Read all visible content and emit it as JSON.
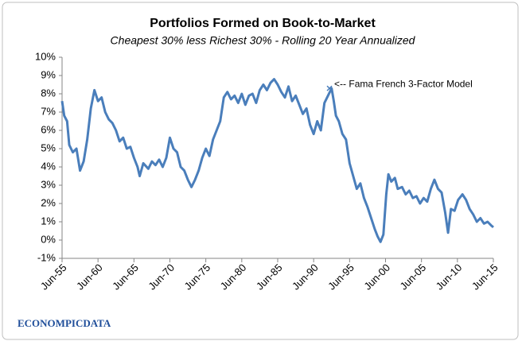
{
  "chart_data": {
    "type": "line",
    "title": "Portfolios Formed on Book-to-Market",
    "subtitle": "Cheapest 30% less Richest 30% - Rolling 20 Year Annualized",
    "xlim": [
      1955.5,
      2015.5
    ],
    "xticks": [
      {
        "value": 1955.5,
        "label": "Jun-55"
      },
      {
        "value": 1960.5,
        "label": "Jun-60"
      },
      {
        "value": 1965.5,
        "label": "Jun-65"
      },
      {
        "value": 1970.5,
        "label": "Jun-70"
      },
      {
        "value": 1975.5,
        "label": "Jun-75"
      },
      {
        "value": 1980.5,
        "label": "Jun-80"
      },
      {
        "value": 1985.5,
        "label": "Jun-85"
      },
      {
        "value": 1990.5,
        "label": "Jun-90"
      },
      {
        "value": 1995.5,
        "label": "Jun-95"
      },
      {
        "value": 2000.5,
        "label": "Jun-00"
      },
      {
        "value": 2005.5,
        "label": "Jun-05"
      },
      {
        "value": 2010.5,
        "label": "Jun-10"
      },
      {
        "value": 2015.5,
        "label": "Jun-15"
      }
    ],
    "ylim": [
      -1,
      10
    ],
    "yticks": [
      {
        "value": -1,
        "label": "-1%"
      },
      {
        "value": 0,
        "label": "0%"
      },
      {
        "value": 1,
        "label": "1%"
      },
      {
        "value": 2,
        "label": "2%"
      },
      {
        "value": 3,
        "label": "3%"
      },
      {
        "value": 4,
        "label": "4%"
      },
      {
        "value": 5,
        "label": "5%"
      },
      {
        "value": 6,
        "label": "6%"
      },
      {
        "value": 7,
        "label": "7%"
      },
      {
        "value": 8,
        "label": "8%"
      },
      {
        "value": 9,
        "label": "9%"
      },
      {
        "value": 10,
        "label": "10%"
      }
    ],
    "grid": false,
    "x": [
      1955.5,
      1955.8,
      1956.2,
      1956.5,
      1957,
      1957.5,
      1958,
      1958.5,
      1959,
      1959.5,
      1960,
      1960.5,
      1961,
      1961.5,
      1962,
      1962.5,
      1963,
      1963.5,
      1964,
      1964.5,
      1965,
      1965.5,
      1966,
      1966.3,
      1966.8,
      1967.5,
      1968,
      1968.5,
      1969,
      1969.5,
      1970,
      1970.5,
      1971,
      1971.5,
      1972,
      1972.5,
      1973,
      1973.5,
      1974,
      1974.5,
      1975,
      1975.5,
      1976,
      1976.5,
      1977,
      1977.5,
      1978,
      1978.5,
      1979,
      1979.5,
      1980,
      1980.5,
      1981,
      1981.5,
      1982,
      1982.5,
      1983,
      1983.5,
      1984,
      1984.5,
      1985,
      1985.5,
      1986,
      1986.5,
      1987,
      1987.5,
      1988,
      1988.5,
      1989,
      1989.5,
      1990,
      1990.5,
      1991,
      1991.5,
      1992,
      1992.5,
      1993,
      1993.3,
      1993.6,
      1994,
      1994.5,
      1995,
      1995.5,
      1996,
      1996.5,
      1997,
      1997.5,
      1998,
      1998.5,
      1999,
      1999.4,
      1999.8,
      2000.2,
      2000.6,
      2000.9,
      2001.3,
      2001.8,
      2002.2,
      2002.8,
      2003.3,
      2003.8,
      2004.3,
      2004.8,
      2005.3,
      2005.8,
      2006.3,
      2006.8,
      2007.3,
      2007.8,
      2008.3,
      2008.8,
      2009.2,
      2009.6,
      2010.1,
      2010.6,
      2011.2,
      2011.7,
      2012.2,
      2012.7,
      2013.2,
      2013.7,
      2014.2,
      2014.7,
      2015.2,
      2015.5
    ],
    "series": [
      {
        "color": "#4a7ebb",
        "values": [
          7.6,
          6.8,
          6.5,
          5.2,
          4.8,
          5.0,
          3.8,
          4.3,
          5.5,
          7.2,
          8.2,
          7.6,
          7.8,
          7.0,
          6.6,
          6.4,
          6.0,
          5.4,
          5.6,
          5.0,
          5.1,
          4.5,
          4.0,
          3.5,
          4.2,
          3.9,
          4.3,
          4.1,
          4.4,
          4.0,
          4.5,
          5.6,
          5.0,
          4.8,
          4.0,
          3.8,
          3.3,
          2.9,
          3.3,
          3.8,
          4.5,
          5.0,
          4.6,
          5.5,
          6.0,
          6.5,
          7.8,
          8.1,
          7.7,
          7.9,
          7.5,
          8.0,
          7.4,
          7.9,
          8.0,
          7.5,
          8.2,
          8.5,
          8.2,
          8.6,
          8.8,
          8.5,
          8.1,
          7.8,
          8.4,
          7.6,
          7.9,
          7.4,
          6.9,
          7.2,
          6.3,
          5.8,
          6.5,
          6.0,
          7.5,
          7.9,
          8.3,
          7.6,
          6.8,
          6.5,
          5.8,
          5.5,
          4.2,
          3.5,
          2.8,
          3.1,
          2.3,
          1.8,
          1.2,
          0.6,
          0.2,
          -0.1,
          0.3,
          2.5,
          3.6,
          3.2,
          3.4,
          2.8,
          2.9,
          2.5,
          2.7,
          2.3,
          2.4,
          2.0,
          2.3,
          2.1,
          2.8,
          3.3,
          2.8,
          2.6,
          1.5,
          0.4,
          1.7,
          1.6,
          2.2,
          2.5,
          2.2,
          1.7,
          1.4,
          1.0,
          1.2,
          0.9,
          1.0,
          0.8,
          0.7
        ]
      }
    ],
    "annotation": {
      "text": "<-- Fama French 3-Factor Model",
      "x": 1992.7,
      "y": 8.3
    },
    "logo": "ECONOMPICDATA"
  }
}
